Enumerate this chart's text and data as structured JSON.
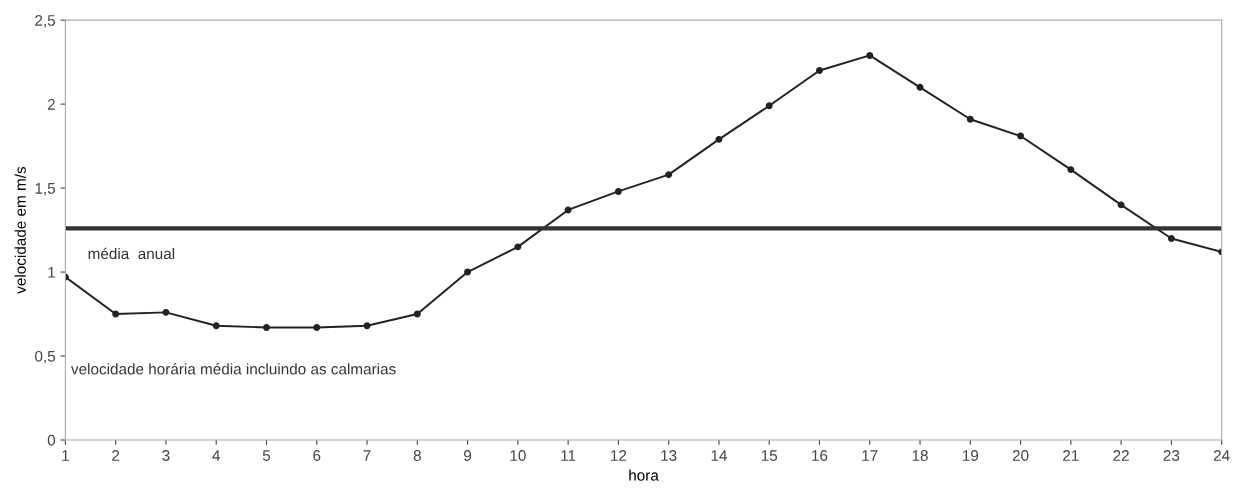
{
  "chart_data": {
    "type": "line",
    "xlabel": "hora",
    "ylabel": "velocidade em m/s",
    "x": [
      1,
      2,
      3,
      4,
      5,
      6,
      7,
      8,
      9,
      10,
      11,
      12,
      13,
      14,
      15,
      16,
      17,
      18,
      19,
      20,
      21,
      22,
      23,
      24
    ],
    "series": [
      {
        "name": "velocidade horária média incluindo as calmarias",
        "color": "#222222",
        "values": [
          0.97,
          0.75,
          0.76,
          0.68,
          0.67,
          0.67,
          0.68,
          0.75,
          1.0,
          1.15,
          1.37,
          1.48,
          1.58,
          1.79,
          1.99,
          2.2,
          2.29,
          2.1,
          1.91,
          1.81,
          1.61,
          1.4,
          1.2,
          1.12
        ]
      }
    ],
    "xlim": [
      1,
      24
    ],
    "xticks": [
      1,
      2,
      3,
      4,
      5,
      6,
      7,
      8,
      9,
      10,
      11,
      12,
      13,
      14,
      15,
      16,
      17,
      18,
      19,
      20,
      21,
      22,
      23,
      24
    ],
    "ylim": [
      0,
      2.5
    ],
    "yticks": [
      0,
      {
        "value": 0.5,
        "label": "0,5"
      },
      1,
      {
        "value": 1.5,
        "label": "1,5"
      },
      2,
      {
        "value": 2.5,
        "label": "2,5"
      }
    ],
    "ref_lines": [
      {
        "axis": "y",
        "value": 1.26,
        "label": "média  anual",
        "color": "#333333"
      }
    ],
    "grid": false,
    "legend": false,
    "marker": "circle",
    "line_style": "solid"
  }
}
